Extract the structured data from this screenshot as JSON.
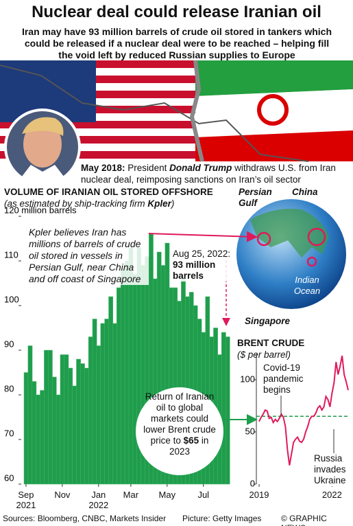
{
  "header": {
    "title": "Nuclear deal could release Iranian oil",
    "subtitle": "Iran may have 93 million barrels of crude oil stored in tankers which could be released if a nuclear deal were to be reached – helping fill the void left by reduced Russian supplies to Europe"
  },
  "caption": [
    "May 2018:",
    " President ",
    "Donald Trump",
    " withdraws U.S. from Iran nuclear deal, reimposing sanctions on Iran’s oil sector"
  ],
  "map": {
    "labels": [
      "Persian Gulf",
      "China",
      "Indian Ocean",
      "Singapore"
    ]
  },
  "callout": [
    "Return of Iranian oil to global markets could lower Brent crude price to",
    "$65",
    "in 2023"
  ],
  "chart_data": [
    {
      "type": "bar",
      "title": "VOLUME OF IRANIAN OIL STORED OFFSHORE",
      "subtitle": [
        "(as estimated by ship-tracking firm ",
        "Kpler",
        ")"
      ],
      "color": "#1f9d4c",
      "categories": [
        "Sep 2021",
        null,
        null,
        null,
        null,
        null,
        null,
        null,
        null,
        "Nov",
        null,
        null,
        null,
        null,
        null,
        null,
        null,
        null,
        "Jan 2022",
        null,
        null,
        null,
        null,
        null,
        null,
        null,
        "Mar",
        null,
        null,
        null,
        null,
        null,
        null,
        null,
        null,
        "May",
        null,
        null,
        null,
        null,
        null,
        null,
        null,
        null,
        "Jul",
        null,
        null,
        null,
        null,
        null,
        null
      ],
      "values": [
        85,
        91,
        83,
        80,
        81,
        90,
        90,
        84,
        80,
        89,
        89,
        86,
        82,
        88,
        87,
        86,
        93,
        97,
        91,
        96,
        97,
        102,
        96,
        104,
        108,
        110,
        113,
        107,
        113,
        109,
        111,
        116,
        106,
        112,
        109,
        114,
        104,
        104,
        101,
        106,
        102,
        103,
        100,
        97,
        94,
        102,
        93,
        95,
        89,
        94,
        93
      ],
      "ylim": [
        60,
        120
      ],
      "yticks": [
        60,
        70,
        80,
        90,
        100,
        110,
        {
          "value": 120,
          "label": "120 million barrels"
        }
      ],
      "annotations": [
        "Kpler believes Iran has millions of barrels of crude oil stored in vessels in Persian Gulf, near China and off coast of Singapore",
        "Aug 25, 2022:",
        "93 million barrels"
      ]
    },
    {
      "type": "line",
      "title": "BRENT CRUDE",
      "subtitle": "($ per barrel)",
      "color": "#e0195a",
      "categories": [
        "2019",
        null,
        null,
        null,
        null,
        null,
        null,
        null,
        null,
        null,
        null,
        null,
        null,
        null,
        null,
        null,
        null,
        null,
        null,
        null,
        null,
        null,
        null,
        null,
        null,
        null,
        null,
        null,
        null,
        null,
        null,
        null,
        null,
        null,
        null,
        null,
        "2022",
        null,
        null,
        null,
        null,
        null,
        null,
        null,
        null
      ],
      "values": [
        60,
        64,
        67,
        71,
        70,
        63,
        64,
        59,
        62,
        60,
        63,
        67,
        64,
        55,
        33,
        18,
        29,
        40,
        43,
        45,
        41,
        40,
        43,
        50,
        55,
        62,
        65,
        65,
        68,
        73,
        75,
        71,
        74,
        84,
        81,
        74,
        87,
        97,
        117,
        105,
        113,
        123,
        105,
        98,
        90
      ],
      "ylim": [
        0,
        125
      ],
      "yticks": [
        0,
        50,
        100
      ],
      "reference_line": 65,
      "annotations": [
        "Covid-19 pandemic begins",
        "Russia invades Ukraine"
      ]
    }
  ],
  "footer": {
    "sources": "Sources: Bloomberg, CNBC, Markets Insider",
    "picture": "Picture: Getty Images",
    "credit": "© GRAPHIC NEWS"
  }
}
